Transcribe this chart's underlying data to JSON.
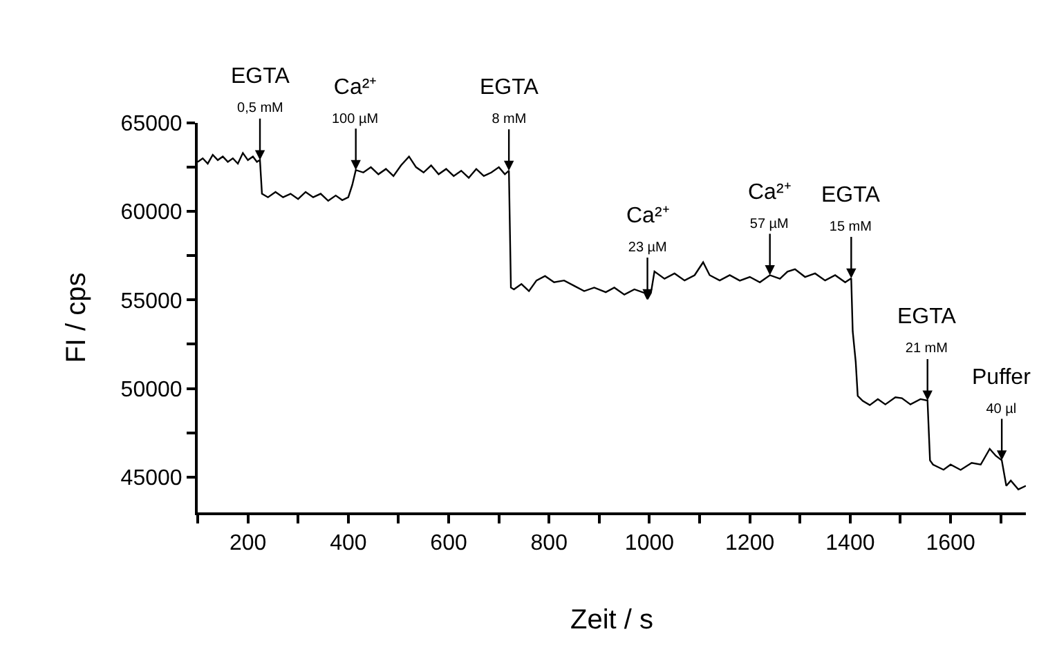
{
  "chart_data": {
    "type": "line",
    "xlabel": "Zeit / s",
    "ylabel": "FI / cps",
    "xlim": [
      100,
      1750
    ],
    "ylim": [
      43000,
      65000
    ],
    "xticks": [
      {
        "value": 100,
        "label": null
      },
      200,
      {
        "value": 300,
        "label": null
      },
      400,
      {
        "value": 500,
        "label": null
      },
      600,
      {
        "value": 700,
        "label": null
      },
      800,
      {
        "value": 900,
        "label": null
      },
      1000,
      {
        "value": 1100,
        "label": null
      },
      1200,
      {
        "value": 1300,
        "label": null
      },
      1400,
      {
        "value": 1500,
        "label": null
      },
      1600,
      {
        "value": 1700,
        "label": null
      }
    ],
    "yticks": [
      45000,
      {
        "value": 47500,
        "label": null
      },
      50000,
      {
        "value": 52500,
        "label": null
      },
      55000,
      {
        "value": 57500,
        "label": null
      },
      60000,
      {
        "value": 62500,
        "label": null
      },
      65000
    ],
    "marker": "none",
    "line_style": "solid",
    "series": [
      {
        "color": "#000000",
        "x": [
          100,
          110,
          120,
          130,
          140,
          150,
          160,
          170,
          180,
          190,
          200,
          210,
          218,
          224,
          228,
          240,
          255,
          270,
          285,
          300,
          315,
          330,
          345,
          360,
          375,
          388,
          400,
          408,
          415,
          430,
          445,
          460,
          475,
          490,
          505,
          521,
          535,
          550,
          565,
          580,
          595,
          610,
          625,
          640,
          655,
          670,
          685,
          700,
          712,
          720,
          724,
          730,
          745,
          760,
          775,
          792,
          810,
          830,
          850,
          870,
          890,
          913,
          930,
          950,
          970,
          990,
          996,
          1003,
          1010,
          1030,
          1050,
          1070,
          1090,
          1107,
          1120,
          1140,
          1160,
          1180,
          1200,
          1220,
          1240,
          1260,
          1275,
          1290,
          1310,
          1330,
          1350,
          1370,
          1390,
          1402,
          1405,
          1411,
          1415,
          1425,
          1439,
          1455,
          1470,
          1490,
          1503,
          1520,
          1540,
          1554,
          1559,
          1565,
          1586,
          1600,
          1620,
          1642,
          1660,
          1678,
          1690,
          1702,
          1711,
          1720,
          1735,
          1750
        ],
        "values": [
          62800,
          63000,
          62700,
          63200,
          62900,
          63100,
          62800,
          63000,
          62700,
          63300,
          62900,
          63100,
          62800,
          62900,
          61000,
          60800,
          61100,
          60800,
          61000,
          60700,
          61100,
          60800,
          61000,
          60600,
          60900,
          60640,
          60800,
          61500,
          62340,
          62200,
          62500,
          62100,
          62400,
          62000,
          62600,
          63100,
          62500,
          62200,
          62600,
          62100,
          62400,
          62000,
          62300,
          61900,
          62400,
          62000,
          62200,
          62500,
          62100,
          62300,
          55700,
          55600,
          55900,
          55500,
          56100,
          56350,
          56000,
          56100,
          55800,
          55500,
          55700,
          55440,
          55700,
          55300,
          55600,
          55400,
          55050,
          55400,
          56610,
          56200,
          56500,
          56100,
          56400,
          57130,
          56400,
          56100,
          56400,
          56090,
          56300,
          56000,
          56400,
          56200,
          56600,
          56740,
          56300,
          56500,
          56100,
          56400,
          56000,
          56220,
          53230,
          51500,
          49580,
          49300,
          49060,
          49400,
          49100,
          49500,
          49450,
          49100,
          49400,
          49320,
          45940,
          45700,
          45410,
          45700,
          45400,
          45800,
          45700,
          46590,
          46200,
          45940,
          44500,
          44800,
          44300,
          44500
        ]
      }
    ],
    "annotations": [
      {
        "text": "EGTA\n0,5 mM",
        "x": 224,
        "y": 62900
      },
      {
        "text": "Ca²⁺\n100 µM",
        "x": 415,
        "y": 62340
      },
      {
        "text": "EGTA\n8 mM",
        "x": 720,
        "y": 62300
      },
      {
        "text": "Ca²⁺\n23 µM",
        "x": 996,
        "y": 55050
      },
      {
        "text": "Ca²⁺\n57 µM",
        "x": 1240,
        "y": 56400
      },
      {
        "text": "EGTA\n15 mM",
        "x": 1402,
        "y": 56220
      },
      {
        "text": "EGTA\n21 mM",
        "x": 1554,
        "y": 49320
      },
      {
        "text": "Puffer\n40 µl",
        "x": 1702,
        "y": 45940
      }
    ]
  }
}
